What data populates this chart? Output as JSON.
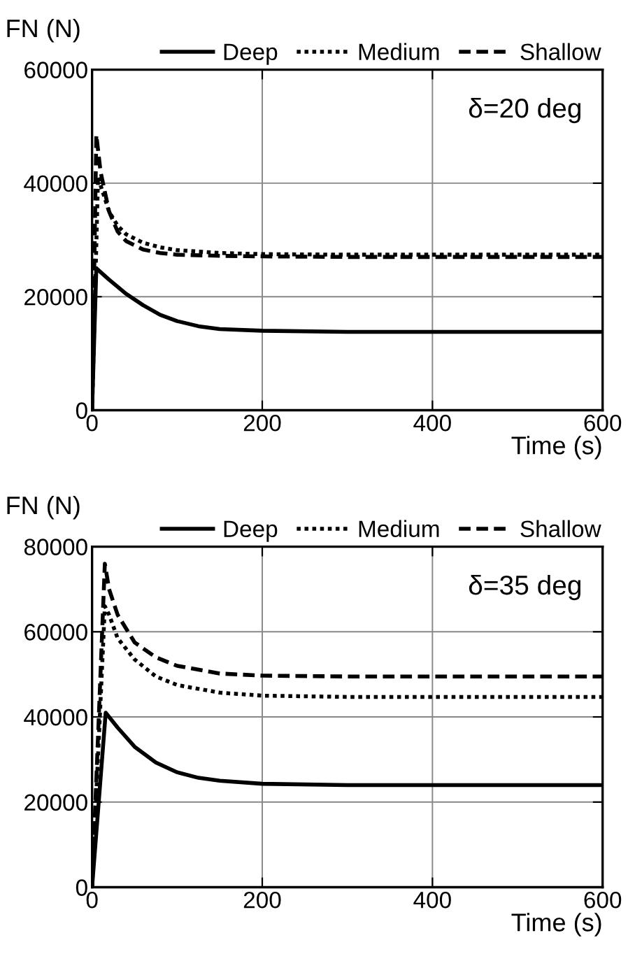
{
  "chart_data": [
    {
      "type": "line",
      "ylabel": "FN (N)",
      "xlabel": "Time (s)",
      "annotations": [
        "δ=20 deg"
      ],
      "xlim": [
        0,
        600
      ],
      "ylim": [
        0,
        60000
      ],
      "xticks": [
        0,
        200,
        400,
        600
      ],
      "yticks": [
        0,
        20000,
        40000,
        60000
      ],
      "grid": true,
      "legend": "top",
      "series": [
        {
          "name": "Deep",
          "color": "#000000",
          "line_style": "solid",
          "x": [
            0,
            5,
            20,
            40,
            60,
            80,
            100,
            125,
            150,
            200,
            300,
            600
          ],
          "values": [
            0,
            25000,
            23000,
            20500,
            18500,
            16800,
            15700,
            14800,
            14300,
            14000,
            13800,
            13800
          ]
        },
        {
          "name": "Medium",
          "color": "#000000",
          "line_style": "dotted",
          "x": [
            0,
            7,
            20,
            30,
            40,
            60,
            80,
            100,
            150,
            200,
            300,
            600
          ],
          "values": [
            0,
            41000,
            35000,
            32500,
            31000,
            29500,
            28700,
            28200,
            27700,
            27500,
            27400,
            27400
          ]
        },
        {
          "name": "Shallow",
          "color": "#000000",
          "line_style": "dashed",
          "x": [
            0,
            5,
            10,
            20,
            30,
            40,
            60,
            80,
            100,
            150,
            200,
            300,
            600
          ],
          "values": [
            0,
            48500,
            42000,
            35000,
            31500,
            29800,
            28300,
            27700,
            27400,
            27200,
            27100,
            27000,
            27000
          ]
        }
      ]
    },
    {
      "type": "line",
      "ylabel": "FN (N)",
      "xlabel": "Time (s)",
      "annotations": [
        "δ=35 deg"
      ],
      "xlim": [
        0,
        600
      ],
      "ylim": [
        0,
        80000
      ],
      "xticks": [
        0,
        200,
        400,
        600
      ],
      "yticks": [
        0,
        20000,
        40000,
        60000,
        80000
      ],
      "grid": true,
      "legend": "top",
      "series": [
        {
          "name": "Deep",
          "color": "#000000",
          "line_style": "solid",
          "x": [
            0,
            16,
            30,
            50,
            75,
            100,
            125,
            150,
            200,
            300,
            600
          ],
          "values": [
            0,
            41000,
            37500,
            33000,
            29300,
            27000,
            25700,
            25000,
            24300,
            24000,
            24000
          ]
        },
        {
          "name": "Medium",
          "color": "#000000",
          "line_style": "dotted",
          "x": [
            0,
            15,
            20,
            30,
            50,
            75,
            100,
            150,
            200,
            300,
            600
          ],
          "values": [
            0,
            66000,
            64000,
            58500,
            53500,
            49500,
            47500,
            45700,
            45000,
            44700,
            44700
          ]
        },
        {
          "name": "Shallow",
          "color": "#000000",
          "line_style": "dashed",
          "x": [
            0,
            15,
            20,
            30,
            50,
            75,
            100,
            150,
            200,
            300,
            600
          ],
          "values": [
            0,
            76000,
            70000,
            64000,
            57500,
            54000,
            52000,
            50200,
            49700,
            49500,
            49500
          ]
        }
      ]
    }
  ]
}
